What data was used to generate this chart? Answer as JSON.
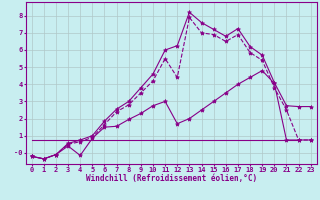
{
  "xlabel": "Windchill (Refroidissement éolien,°C)",
  "bg_color": "#c8eef0",
  "line_color": "#880088",
  "grid_color": "#b0c8c8",
  "xlim": [
    -0.5,
    23.5
  ],
  "ylim": [
    -0.65,
    8.8
  ],
  "yticks": [
    0,
    1,
    2,
    3,
    4,
    5,
    6,
    7,
    8
  ],
  "ytick_labels": [
    "-0",
    "1",
    "2",
    "3",
    "4",
    "5",
    "6",
    "7",
    "8"
  ],
  "xticks": [
    0,
    1,
    2,
    3,
    4,
    5,
    6,
    7,
    8,
    9,
    10,
    11,
    12,
    13,
    14,
    15,
    16,
    17,
    18,
    19,
    20,
    21,
    22,
    23
  ],
  "line1_x": [
    0,
    1,
    2,
    3,
    4,
    5,
    6,
    7,
    8,
    9,
    10,
    11,
    12,
    13,
    14,
    15,
    16,
    17,
    18,
    19,
    20,
    21,
    22,
    23
  ],
  "line1_y": [
    -0.2,
    -0.35,
    -0.1,
    0.55,
    0.75,
    1.0,
    1.85,
    2.55,
    3.0,
    3.8,
    4.6,
    6.0,
    6.25,
    8.2,
    7.6,
    7.2,
    6.8,
    7.25,
    6.2,
    5.7,
    4.1,
    2.75,
    2.7,
    2.7
  ],
  "line1_style": "-",
  "line2_x": [
    0,
    1,
    2,
    3,
    4,
    5,
    6,
    7,
    8,
    9,
    10,
    11,
    12,
    13,
    14,
    15,
    16,
    17,
    18,
    19,
    20,
    21,
    22,
    23
  ],
  "line2_y": [
    -0.2,
    -0.35,
    -0.1,
    0.5,
    0.65,
    0.9,
    1.65,
    2.4,
    2.8,
    3.5,
    4.2,
    5.5,
    4.4,
    7.9,
    7.0,
    6.9,
    6.5,
    6.9,
    5.85,
    5.4,
    3.8,
    2.5,
    0.75,
    0.75
  ],
  "line2_style": "--",
  "line3_x": [
    0,
    1,
    2,
    3,
    4,
    5,
    6,
    7,
    8,
    9,
    10,
    11,
    12,
    13,
    14,
    15,
    16,
    17,
    18,
    19,
    20,
    21,
    22,
    23
  ],
  "line3_y": [
    -0.2,
    -0.35,
    -0.1,
    0.4,
    -0.15,
    0.85,
    1.5,
    1.55,
    1.95,
    2.3,
    2.75,
    3.0,
    1.7,
    2.0,
    2.5,
    3.0,
    3.5,
    4.0,
    4.4,
    4.8,
    4.05,
    0.75,
    0.75,
    0.75
  ],
  "line3_style": "-",
  "line4_x": [
    0,
    22
  ],
  "line4_y": [
    0.75,
    0.75
  ],
  "line4_style": "-"
}
